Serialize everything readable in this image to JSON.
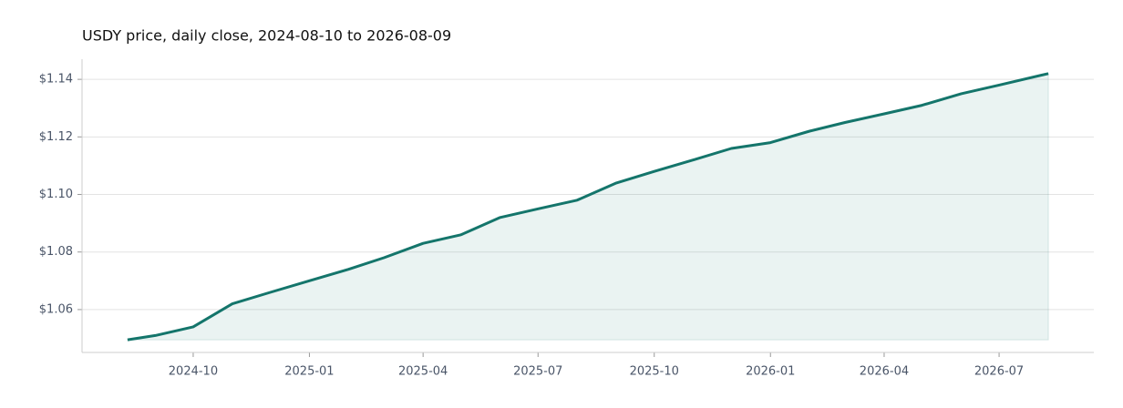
{
  "chart_data": {
    "type": "area",
    "title": "USDY price, daily close, 2024-08-10 to 2026-08-09",
    "x": [
      "2024-08-10",
      "2024-09",
      "2024-10",
      "2024-11",
      "2024-12",
      "2025-01",
      "2025-02",
      "2025-03",
      "2025-04",
      "2025-05",
      "2025-06",
      "2025-07",
      "2025-08",
      "2025-09",
      "2025-10",
      "2025-11",
      "2025-12",
      "2026-01",
      "2026-02",
      "2026-03",
      "2026-04",
      "2026-05",
      "2026-06",
      "2026-07",
      "2026-08-09"
    ],
    "values": [
      1.0495,
      1.051,
      1.054,
      1.062,
      1.066,
      1.07,
      1.074,
      1.078,
      1.083,
      1.086,
      1.092,
      1.095,
      1.098,
      1.104,
      1.108,
      1.112,
      1.116,
      1.118,
      1.122,
      1.125,
      1.128,
      1.131,
      1.135,
      1.138,
      1.142
    ],
    "color": "#14756b",
    "xlim": [
      "2024-07-05",
      "2026-09-14"
    ],
    "xticks": [
      "2024-10",
      "2025-01",
      "2025-04",
      "2025-07",
      "2025-10",
      "2026-01",
      "2026-04",
      "2026-07"
    ],
    "ylim": [
      1.0451,
      1.147
    ],
    "yticks": [
      {
        "value": 1.06,
        "label": "$1.06"
      },
      {
        "value": 1.08,
        "label": "$1.08"
      },
      {
        "value": 1.1,
        "label": "$1.10"
      },
      {
        "value": 1.12,
        "label": "$1.12"
      },
      {
        "value": 1.14,
        "label": "$1.14"
      }
    ],
    "grid": true
  }
}
